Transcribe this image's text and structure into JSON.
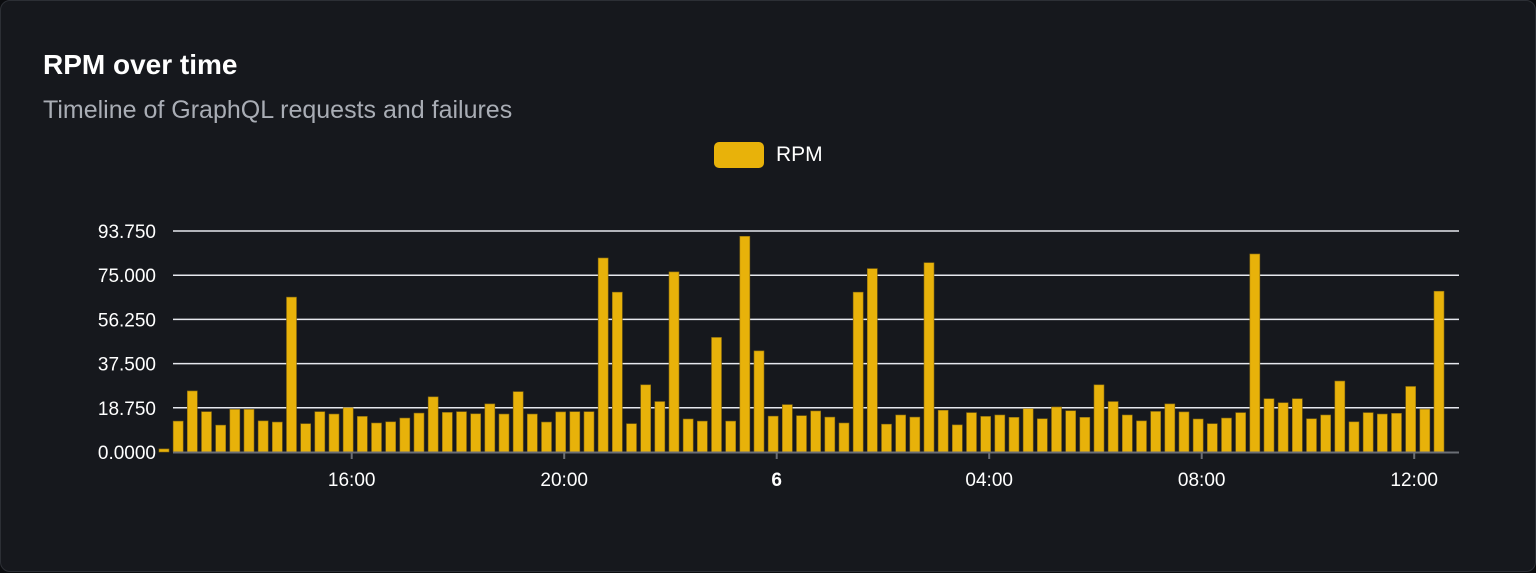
{
  "header": {
    "title": "RPM over time",
    "subtitle": "Timeline of GraphQL requests and failures"
  },
  "colors": {
    "bar": "#e8b20a",
    "grid": "#e6e8ee",
    "axis": "#6b6e75"
  },
  "chart_data": {
    "type": "bar",
    "title": "RPM over time",
    "subtitle": "Timeline of GraphQL requests and failures",
    "legend": {
      "placement": "top-center",
      "entries": [
        "RPM"
      ]
    },
    "grid": true,
    "ylim": [
      0,
      93.75
    ],
    "yticks": [
      "0.0000",
      "18.750",
      "37.500",
      "56.250",
      "75.000",
      "93.750"
    ],
    "xticks": [
      {
        "at": "16:00",
        "label": "16:00",
        "bold": false
      },
      {
        "at": "20:00",
        "label": "20:00",
        "bold": false
      },
      {
        "at": "00:00",
        "label": "6",
        "bold": true
      },
      {
        "at": "04:00",
        "label": "04:00",
        "bold": false
      },
      {
        "at": "08:00",
        "label": "08:00",
        "bold": false
      },
      {
        "at": "12:00",
        "label": "12:00",
        "bold": false
      }
    ],
    "x": [
      "12:28",
      "12:44",
      "13:00",
      "13:16",
      "13:32",
      "13:48",
      "14:04",
      "14:20",
      "14:36",
      "14:52",
      "15:08",
      "15:24",
      "15:40",
      "15:56",
      "16:12",
      "16:28",
      "16:44",
      "17:00",
      "17:16",
      "17:32",
      "17:48",
      "18:04",
      "18:20",
      "18:36",
      "18:52",
      "19:08",
      "19:24",
      "19:40",
      "19:56",
      "20:12",
      "20:28",
      "20:44",
      "21:00",
      "21:16",
      "21:32",
      "21:48",
      "22:04",
      "22:20",
      "22:36",
      "22:52",
      "23:08",
      "23:24",
      "23:40",
      "23:56",
      "00:12",
      "00:28",
      "00:44",
      "01:00",
      "01:16",
      "01:32",
      "01:48",
      "02:04",
      "02:20",
      "02:36",
      "02:52",
      "03:08",
      "03:24",
      "03:40",
      "03:56",
      "04:12",
      "04:28",
      "04:44",
      "05:00",
      "05:16",
      "05:32",
      "05:48",
      "06:04",
      "06:20",
      "06:36",
      "06:52",
      "07:08",
      "07:24",
      "07:40",
      "07:56",
      "08:12",
      "08:28",
      "08:44",
      "09:00",
      "09:16",
      "09:32",
      "09:48",
      "10:04",
      "10:20",
      "10:36",
      "10:52",
      "11:08",
      "11:24",
      "11:40",
      "11:56",
      "12:12",
      "12:28"
    ],
    "series": [
      {
        "name": "RPM",
        "values": [
          1.3,
          13.1,
          25.9,
          17.1,
          11.4,
          18.1,
          18.1,
          13.2,
          12.7,
          65.7,
          12.0,
          17.1,
          16.1,
          18.8,
          15.1,
          12.3,
          12.8,
          14.4,
          16.5,
          23.4,
          16.8,
          17.1,
          16.2,
          20.4,
          16.1,
          25.6,
          16.1,
          12.7,
          17.0,
          17.1,
          17.1,
          82.3,
          67.8,
          12.0,
          28.5,
          21.4,
          76.4,
          14.0,
          13.1,
          48.6,
          13.1,
          91.5,
          42.9,
          15.2,
          20.1,
          15.4,
          17.4,
          14.8,
          12.3,
          67.8,
          77.8,
          11.8,
          15.7,
          14.8,
          80.3,
          17.7,
          11.5,
          16.7,
          15.1,
          15.7,
          14.7,
          18.4,
          14.1,
          19.1,
          17.5,
          14.7,
          28.5,
          21.4,
          15.7,
          13.2,
          17.2,
          20.4,
          17.0,
          14.0,
          12.0,
          14.4,
          16.7,
          84.0,
          22.6,
          20.9,
          22.6,
          14.1,
          15.7,
          30.1,
          12.8,
          16.7,
          16.1,
          16.4,
          27.8,
          18.2,
          68.2
        ]
      }
    ]
  }
}
